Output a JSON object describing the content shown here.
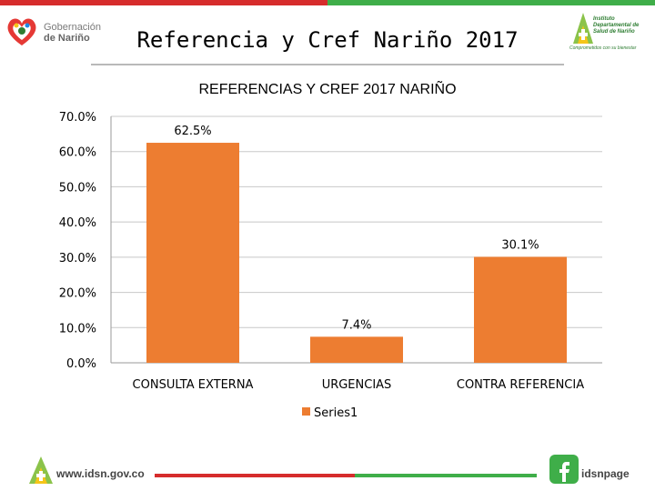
{
  "header": {
    "page_title": "Referencia y Cref Nariño 2017",
    "left_logo": {
      "line1": "Gobernación",
      "line2": "de Nariño"
    },
    "right_logo": {
      "text": "Instituto Departamental de Salud de Nariño",
      "slogan": "Comprometidos con su bienestar"
    }
  },
  "colors": {
    "bar": "#ED7D31",
    "accent_red": "#D62C2C",
    "accent_green": "#3FAE49",
    "accent_yellow": "#F5C518"
  },
  "chart_data": {
    "type": "bar",
    "title": "REFERENCIAS Y CREF 2017 NARIÑO",
    "categories": [
      "CONSULTA EXTERNA",
      "URGENCIAS",
      "CONTRA REFERENCIA"
    ],
    "series": [
      {
        "name": "Series1",
        "values": [
          62.5,
          7.4,
          30.1
        ],
        "color": "#ED7D31"
      }
    ],
    "data_labels": [
      "62.5%",
      "7.4%",
      "30.1%"
    ],
    "ylim": [
      0,
      70
    ],
    "yticks": [
      "0.0%",
      "10.0%",
      "20.0%",
      "30.0%",
      "40.0%",
      "50.0%",
      "60.0%",
      "70.0%"
    ],
    "grid": true,
    "legend": "bottom"
  },
  "footer": {
    "website": "www.idsn.gov.co",
    "social": "idsnpage"
  }
}
